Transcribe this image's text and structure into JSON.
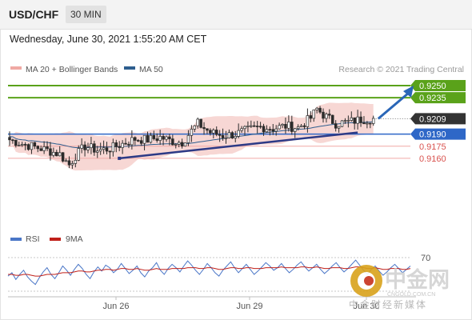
{
  "header": {
    "symbol": "USD/CHF",
    "timeframe": "30 MIN"
  },
  "datetime": "Wednesday, June 30, 2021 1:55:20 AM CET",
  "legend": {
    "bollinger": "MA 20 + Bollinger Bands",
    "ma50": "MA 50",
    "credit": "Research © 2021 Trading Central"
  },
  "rsi_legend": {
    "rsi": "RSI",
    "ma": "9MA"
  },
  "watermark": {
    "cn": "中金网",
    "domain": "CNGOLD.COM.CN",
    "tagline": "中金财经新媒体"
  },
  "colors": {
    "resistance": "#5aa21a",
    "support": "#2e67c7",
    "weak_support": "#d9534f",
    "bollinger_fill": "#f4c9c6",
    "ma50": "#2e5e8f",
    "trendline": "#2c3a86",
    "candle": "#2b2b2b",
    "rsi": "#4a76c7",
    "rsi_ma": "#c0201a",
    "arrow": "#2a66b7",
    "last_price_bg": "#333333"
  },
  "chart_data": [
    {
      "type": "candlestick",
      "title": "USD/CHF",
      "timeframe": "30 MIN",
      "x_ticks": [
        "Jun 26",
        "Jun 29",
        "Jun 30"
      ],
      "levels": [
        {
          "label": "0.9250",
          "value": 0.925,
          "kind": "resistance"
        },
        {
          "label": "0.9235",
          "value": 0.9235,
          "kind": "resistance"
        },
        {
          "label": "0.9209",
          "value": 0.9209,
          "kind": "last"
        },
        {
          "label": "0.9190",
          "value": 0.919,
          "kind": "support"
        },
        {
          "label": "0.9175",
          "value": 0.9175,
          "kind": "weak_support"
        },
        {
          "label": "0.9160",
          "value": 0.916,
          "kind": "weak_support"
        }
      ],
      "price_path": [
        [
          0,
          0.9183
        ],
        [
          4,
          0.9178
        ],
        [
          8,
          0.9174
        ],
        [
          12,
          0.917
        ],
        [
          16,
          0.9165
        ],
        [
          19,
          0.9152
        ],
        [
          21,
          0.9163
        ],
        [
          24,
          0.9175
        ],
        [
          28,
          0.917
        ],
        [
          32,
          0.9172
        ],
        [
          36,
          0.9178
        ],
        [
          40,
          0.9184
        ],
        [
          44,
          0.9183
        ],
        [
          48,
          0.9186
        ],
        [
          52,
          0.9181
        ],
        [
          55,
          0.918
        ],
        [
          58,
          0.9194
        ],
        [
          60,
          0.9203
        ],
        [
          64,
          0.9192
        ],
        [
          68,
          0.9188
        ],
        [
          72,
          0.919
        ],
        [
          76,
          0.9195
        ],
        [
          80,
          0.9199
        ],
        [
          84,
          0.9197
        ],
        [
          88,
          0.92
        ],
        [
          92,
          0.9198
        ],
        [
          96,
          0.921
        ],
        [
          98,
          0.9221
        ],
        [
          100,
          0.9214
        ],
        [
          104,
          0.9203
        ],
        [
          108,
          0.9205
        ],
        [
          112,
          0.9208
        ],
        [
          116,
          0.9209
        ]
      ],
      "trendline": {
        "from": [
          35,
          0.916
        ],
        "to": [
          111,
          0.9192
        ]
      },
      "projection": {
        "from": [
          115,
          0.9209
        ],
        "to": [
          125,
          0.925
        ]
      },
      "series": [
        {
          "name": "MA 20 + Bollinger Bands"
        },
        {
          "name": "MA 50"
        }
      ]
    },
    {
      "type": "line",
      "ylim": [
        30,
        70
      ],
      "y_ticks": [
        70
      ],
      "series": [
        {
          "name": "RSI",
          "values": [
            48,
            52,
            44,
            50,
            55,
            47,
            42,
            38,
            46,
            53,
            58,
            50,
            45,
            52,
            60,
            55,
            49,
            56,
            62,
            57,
            50,
            45,
            53,
            59,
            54,
            61,
            58,
            52,
            56,
            63,
            57,
            51,
            55,
            60,
            52,
            47,
            54,
            58,
            64,
            55,
            50,
            57,
            62,
            58,
            53,
            60,
            66,
            61,
            55,
            50,
            56,
            63,
            58,
            52,
            48,
            55,
            60,
            65,
            58,
            52,
            57,
            62,
            56,
            50,
            54,
            59,
            64,
            60,
            55,
            58,
            63,
            57,
            52,
            56,
            61,
            65,
            59,
            54,
            58,
            62,
            56,
            51,
            55,
            60,
            64,
            58,
            53,
            57,
            62,
            67,
            61,
            55,
            50,
            56,
            60,
            54,
            49,
            53,
            58,
            62,
            57,
            52,
            56,
            60
          ]
        },
        {
          "name": "9MA",
          "values": [
            50,
            50,
            49,
            49,
            50,
            50,
            49,
            48,
            48,
            49,
            50,
            50,
            50,
            51,
            52,
            52,
            52,
            53,
            54,
            54,
            53,
            53,
            54,
            55,
            55,
            56,
            56,
            55,
            56,
            57,
            57,
            56,
            56,
            57,
            56,
            55,
            55,
            56,
            57,
            56,
            56,
            56,
            57,
            57,
            57,
            57,
            58,
            58,
            58,
            57,
            57,
            58,
            58,
            57,
            56,
            56,
            57,
            58,
            58,
            57,
            57,
            58,
            58,
            57,
            57,
            57,
            58,
            58,
            58,
            58,
            59,
            58,
            58,
            58,
            58,
            59,
            59,
            58,
            58,
            59,
            58,
            57,
            57,
            58,
            58,
            58,
            57,
            57,
            58,
            59,
            59,
            58,
            57,
            57,
            58,
            57,
            56,
            56,
            57,
            57,
            57,
            56,
            56,
            57
          ]
        }
      ]
    }
  ]
}
